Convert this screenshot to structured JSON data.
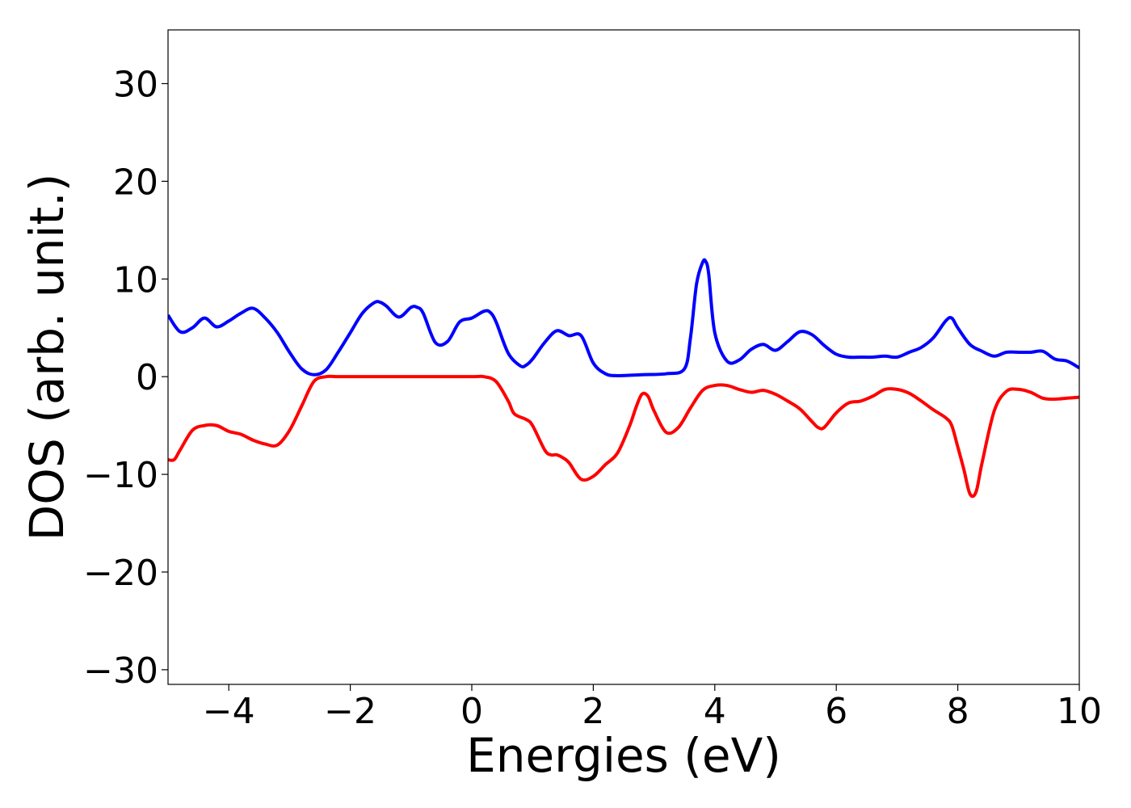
{
  "chart_data": {
    "type": "line",
    "title": "",
    "xlabel": "Energies (eV)",
    "ylabel": "DOS (arb. unit.)",
    "xlim": [
      -5,
      10
    ],
    "ylim": [
      -31.5,
      35.5
    ],
    "xticks": [
      -4,
      -2,
      0,
      2,
      4,
      6,
      8,
      10
    ],
    "yticks": [
      -30,
      -20,
      -10,
      0,
      10,
      20,
      30
    ],
    "xtick_labels": [
      "−4",
      "−2",
      "0",
      "2",
      "4",
      "6",
      "8",
      "10"
    ],
    "ytick_labels": [
      "−30",
      "−20",
      "−10",
      "0",
      "10",
      "20",
      "30"
    ],
    "grid": false,
    "legend": "none",
    "series": [
      {
        "color": "#0000ff",
        "x": [
          -5.0,
          -4.8,
          -4.6,
          -4.4,
          -4.2,
          -4.0,
          -3.8,
          -3.6,
          -3.4,
          -3.2,
          -3.0,
          -2.8,
          -2.6,
          -2.4,
          -2.2,
          -2.0,
          -1.8,
          -1.6,
          -1.5,
          -1.4,
          -1.2,
          -1.0,
          -0.9,
          -0.8,
          -0.6,
          -0.4,
          -0.2,
          0.0,
          0.2,
          0.3,
          0.4,
          0.6,
          0.8,
          0.9,
          1.0,
          1.2,
          1.4,
          1.6,
          1.8,
          2.0,
          2.2,
          2.4,
          2.8,
          3.2,
          3.5,
          3.6,
          3.7,
          3.8,
          3.85,
          3.9,
          4.0,
          4.2,
          4.4,
          4.6,
          4.8,
          5.0,
          5.2,
          5.4,
          5.6,
          5.8,
          6.0,
          6.2,
          6.4,
          6.6,
          6.8,
          7.0,
          7.2,
          7.4,
          7.6,
          7.8,
          7.9,
          8.0,
          8.2,
          8.4,
          8.6,
          8.8,
          9.0,
          9.2,
          9.4,
          9.6,
          9.8,
          10.0
        ],
        "y": [
          6.3,
          4.6,
          5.0,
          6.0,
          5.1,
          5.7,
          6.5,
          7.0,
          6.0,
          4.5,
          2.5,
          0.8,
          0.2,
          0.7,
          2.5,
          4.5,
          6.5,
          7.6,
          7.6,
          7.2,
          6.1,
          7.1,
          7.1,
          6.5,
          3.5,
          3.6,
          5.6,
          6.0,
          6.7,
          6.6,
          5.6,
          2.4,
          1.1,
          1.2,
          1.8,
          3.5,
          4.7,
          4.2,
          4.2,
          1.4,
          0.3,
          0.1,
          0.2,
          0.3,
          0.8,
          4.0,
          9.5,
          11.7,
          11.8,
          10.5,
          4.5,
          1.6,
          1.7,
          2.8,
          3.3,
          2.7,
          3.6,
          4.6,
          4.3,
          3.2,
          2.3,
          2.0,
          2.0,
          2.0,
          2.1,
          2.0,
          2.5,
          3.0,
          4.0,
          5.7,
          6.0,
          5.0,
          3.3,
          2.6,
          2.1,
          2.5,
          2.5,
          2.5,
          2.6,
          1.8,
          1.6,
          0.9
        ]
      },
      {
        "color": "#ff0000",
        "x": [
          -5.0,
          -4.9,
          -4.8,
          -4.6,
          -4.4,
          -4.2,
          -4.0,
          -3.8,
          -3.6,
          -3.4,
          -3.2,
          -3.0,
          -2.8,
          -2.6,
          -2.4,
          -2.2,
          -2.0,
          -1.0,
          0.0,
          0.2,
          0.4,
          0.6,
          0.7,
          0.9,
          1.0,
          1.2,
          1.3,
          1.4,
          1.5,
          1.6,
          1.8,
          2.0,
          2.2,
          2.4,
          2.6,
          2.7,
          2.8,
          2.9,
          3.0,
          3.2,
          3.4,
          3.6,
          3.8,
          4.0,
          4.2,
          4.4,
          4.6,
          4.8,
          5.0,
          5.2,
          5.4,
          5.6,
          5.7,
          5.8,
          6.0,
          6.2,
          6.4,
          6.6,
          6.8,
          7.0,
          7.2,
          7.4,
          7.6,
          7.8,
          7.9,
          8.0,
          8.1,
          8.2,
          8.3,
          8.4,
          8.6,
          8.8,
          9.0,
          9.2,
          9.4,
          9.6,
          9.8,
          10.0
        ],
        "y": [
          -8.5,
          -8.5,
          -7.5,
          -5.5,
          -5.0,
          -5.0,
          -5.6,
          -5.9,
          -6.5,
          -6.9,
          -7.0,
          -5.5,
          -3.0,
          -0.5,
          0.0,
          0.0,
          0.0,
          0.0,
          0.0,
          0.0,
          -0.5,
          -2.5,
          -3.8,
          -4.4,
          -5.0,
          -7.5,
          -8.0,
          -8.0,
          -8.3,
          -8.8,
          -10.5,
          -10.2,
          -9.0,
          -7.8,
          -5.0,
          -3.2,
          -1.8,
          -2.0,
          -3.5,
          -5.7,
          -5.2,
          -3.2,
          -1.4,
          -0.9,
          -0.9,
          -1.3,
          -1.6,
          -1.4,
          -1.8,
          -2.5,
          -3.3,
          -4.6,
          -5.2,
          -5.2,
          -3.7,
          -2.7,
          -2.5,
          -2.0,
          -1.3,
          -1.3,
          -1.7,
          -2.5,
          -3.4,
          -4.2,
          -5.0,
          -7.2,
          -9.5,
          -12.0,
          -11.8,
          -8.8,
          -3.5,
          -1.5,
          -1.3,
          -1.6,
          -2.2,
          -2.3,
          -2.2,
          -2.1
        ]
      }
    ]
  }
}
